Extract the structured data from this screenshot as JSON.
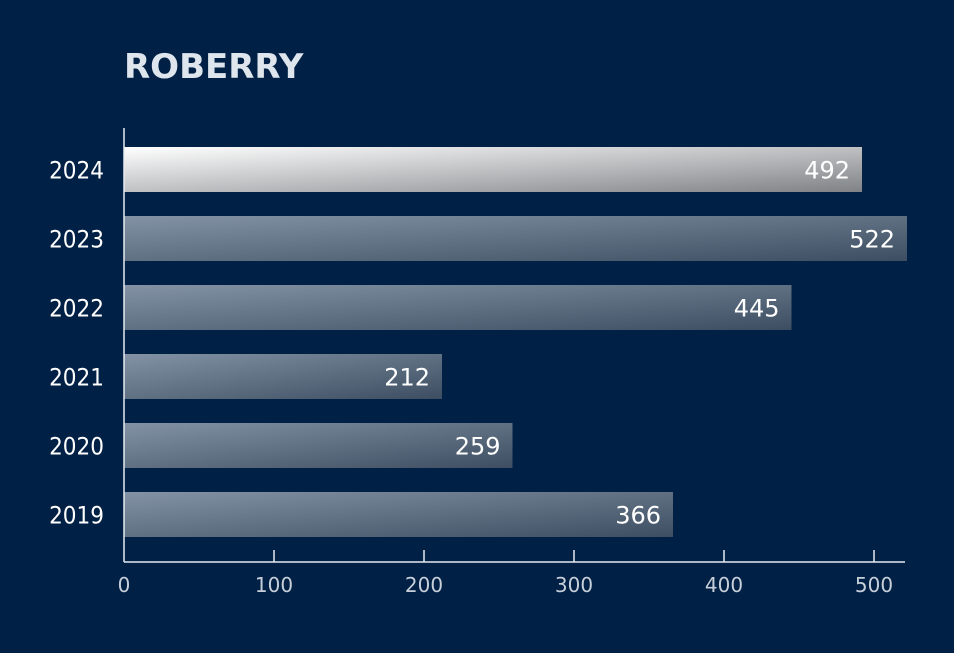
{
  "chart_data": {
    "type": "bar",
    "orientation": "horizontal",
    "title": "ROBERRY",
    "categories": [
      "2024",
      "2023",
      "2022",
      "2021",
      "2020",
      "2019"
    ],
    "values": [
      492,
      522,
      445,
      212,
      259,
      366
    ],
    "xlim": [
      0,
      522
    ],
    "xticks": [
      0,
      100,
      200,
      300,
      400,
      500
    ],
    "xlabel": "",
    "ylabel": "",
    "highlight_category": "2024",
    "grid": false,
    "legend": "none"
  },
  "colors": {
    "background": "#012045",
    "bar_gradient_start": "#8393a5",
    "bar_gradient_end": "#3d4e62",
    "highlight_gradient_start": "#ffffff",
    "highlight_gradient_end": "#7f8286",
    "text": "#ffffff",
    "axis": "#e6ebf0"
  }
}
